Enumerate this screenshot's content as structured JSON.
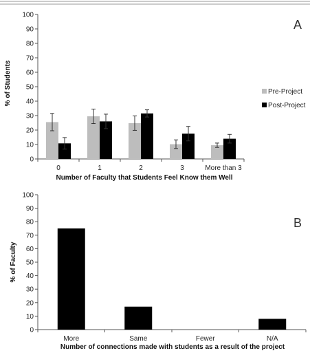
{
  "chart_data": [
    {
      "type": "bar",
      "panel_label": "A",
      "categories": [
        "0",
        "1",
        "2",
        "3",
        "More than 3"
      ],
      "series": [
        {
          "name": "Pre-Project",
          "color": "#bdbdbd",
          "values": [
            25.5,
            29.5,
            24.8,
            10.2,
            9.5
          ],
          "errors": [
            6,
            5,
            5,
            3,
            1.5
          ]
        },
        {
          "name": "Post-Project",
          "color": "#000000",
          "values": [
            10.8,
            26.0,
            31.5,
            17.5,
            14.0
          ],
          "errors": [
            4,
            5,
            2.5,
            5,
            3
          ]
        }
      ],
      "xlabel": "Number of Faculty that Students Feel Know them Well",
      "ylabel": "% of Students",
      "ylim": [
        0,
        100
      ],
      "yticks": [
        "0",
        "10",
        "20",
        "30",
        "40",
        "50",
        "60",
        "70",
        "80",
        "90",
        "100"
      ],
      "grid": false,
      "legend_position": "right"
    },
    {
      "type": "bar",
      "panel_label": "B",
      "categories": [
        "More",
        "Same",
        "Fewer",
        "N/A"
      ],
      "series": [
        {
          "color": "#000000",
          "values": [
            75,
            17,
            0,
            8
          ]
        }
      ],
      "xlabel": "Number of connections made with students as a result of the project",
      "ylabel": "% of Faculty",
      "ylim": [
        0,
        100
      ],
      "yticks": [
        "0",
        "10",
        "20",
        "30",
        "40",
        "50",
        "60",
        "70",
        "80",
        "90",
        "100"
      ],
      "grid": false
    }
  ]
}
